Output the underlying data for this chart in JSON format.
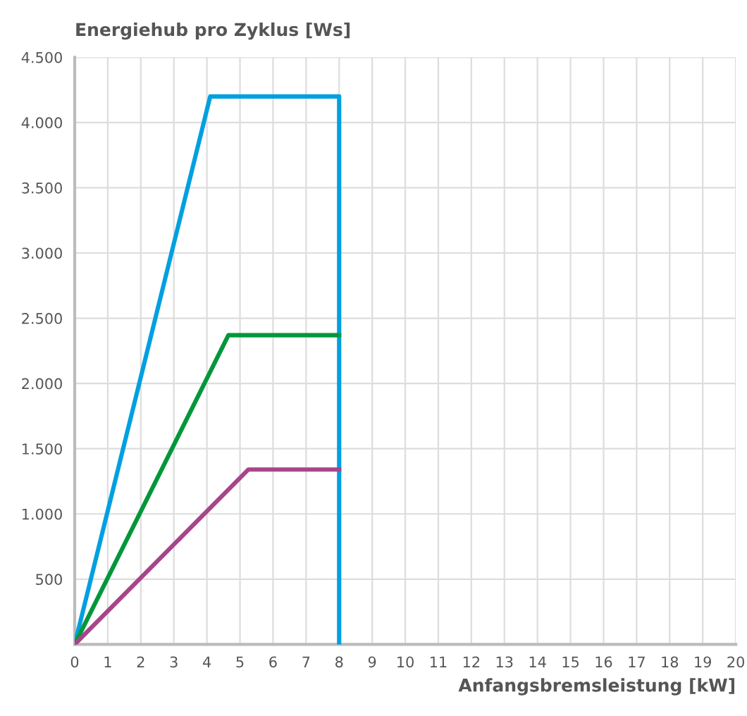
{
  "chart_data": {
    "type": "line",
    "ylabel": "Energiehub pro Zyklus [Ws]",
    "xlabel": "Anfangsbremsleistung [kW]",
    "xlim": [
      0,
      20
    ],
    "xticks": [
      0,
      1,
      2,
      3,
      4,
      5,
      6,
      7,
      8,
      9,
      10,
      11,
      12,
      13,
      14,
      15,
      16,
      17,
      18,
      19,
      20
    ],
    "ylim": [
      0,
      4500
    ],
    "yticks": [
      {
        "value": 500,
        "label": "500"
      },
      {
        "value": 1000,
        "label": "1.000"
      },
      {
        "value": 1500,
        "label": "1.500"
      },
      {
        "value": 2000,
        "label": "2.000"
      },
      {
        "value": 2500,
        "label": "2.500"
      },
      {
        "value": 3000,
        "label": "3.000"
      },
      {
        "value": 3500,
        "label": "3.500"
      },
      {
        "value": 4000,
        "label": "4.000"
      },
      {
        "value": 4500,
        "label": "4.500"
      }
    ],
    "grid": true,
    "marker": "none",
    "line_style": "solid",
    "series": [
      {
        "color": "#00a0e0",
        "x": [
          0,
          4.1,
          8,
          8
        ],
        "values": [
          0,
          4200,
          4200,
          0
        ]
      },
      {
        "color": "#00973a",
        "x": [
          0,
          4.65,
          8
        ],
        "values": [
          0,
          2370,
          2370
        ]
      },
      {
        "color": "#a8458a",
        "x": [
          0,
          5.25,
          8
        ],
        "values": [
          0,
          1340,
          1340
        ]
      }
    ]
  }
}
